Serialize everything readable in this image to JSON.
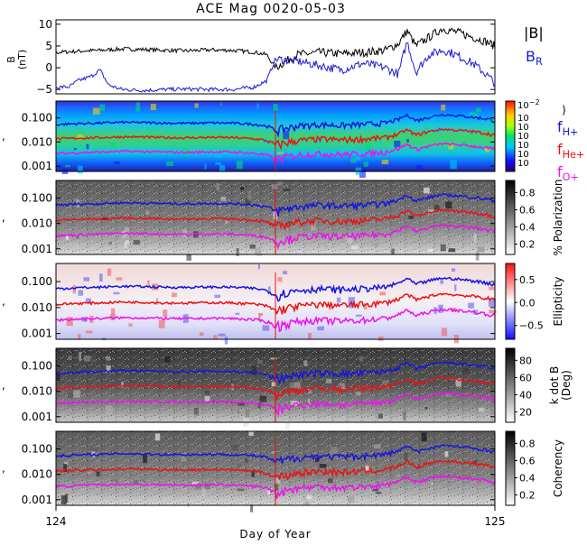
{
  "title": "ACE Mag 0020-05-03",
  "xlabel": "Day of Year",
  "x_ticks": [
    "124",
    "125"
  ],
  "colors": {
    "B_total": "#000000",
    "B_R": "#1a1ad8",
    "f_H": "#1515e0",
    "f_He": "#ee1111",
    "f_O": "#ee11ee"
  },
  "chart_data": [
    {
      "type": "line",
      "panel": "magnetic-field",
      "ylabel": "B (nT)",
      "ylabel_line1": "B",
      "ylabel_line2": "(nT)",
      "yticks": [
        "10",
        "5",
        "0",
        "−5"
      ],
      "ylim": [
        -6,
        11
      ],
      "xlim": [
        124,
        125
      ],
      "legend": [
        {
          "label": "|B|",
          "color": "#000000"
        },
        {
          "label": "B",
          "sub": "R",
          "color": "#1a1ad8"
        }
      ],
      "series": [
        {
          "name": "|B|",
          "x": [
            124.0,
            124.05,
            124.1,
            124.15,
            124.2,
            124.25,
            124.3,
            124.35,
            124.4,
            124.45,
            124.48,
            124.5,
            124.55,
            124.6,
            124.65,
            124.7,
            124.75,
            124.78,
            124.8,
            124.82,
            124.85,
            124.88,
            124.9,
            124.92,
            124.95,
            124.98,
            125.0
          ],
          "values": [
            3.5,
            3.8,
            4.0,
            4.3,
            4.2,
            4.0,
            3.9,
            4.1,
            4.0,
            3.6,
            3.0,
            0.0,
            3.0,
            3.5,
            3.2,
            3.5,
            4.0,
            5.5,
            8.5,
            5.0,
            7.0,
            9.0,
            8.5,
            8.0,
            7.0,
            6.0,
            5.0
          ]
        },
        {
          "name": "B_R",
          "x": [
            124.0,
            124.03,
            124.05,
            124.08,
            124.1,
            124.12,
            124.15,
            124.2,
            124.25,
            124.3,
            124.35,
            124.4,
            124.45,
            124.48,
            124.5,
            124.55,
            124.6,
            124.65,
            124.7,
            124.75,
            124.78,
            124.8,
            124.82,
            124.85,
            124.88,
            124.9,
            124.92,
            124.95,
            124.98,
            125.0
          ],
          "values": [
            -4.5,
            -4.4,
            -3.0,
            -2.0,
            -0.5,
            -4.0,
            -5.0,
            -5.2,
            -5.0,
            -4.9,
            -5.0,
            -5.0,
            -4.5,
            -3.0,
            2.0,
            1.5,
            0.5,
            -0.5,
            1.0,
            0.0,
            -1.5,
            6.0,
            -1.0,
            3.0,
            4.0,
            3.5,
            2.5,
            1.0,
            -1.5,
            -3.5
          ]
        }
      ]
    },
    {
      "type": "heatmap",
      "panel": "power-spectrum",
      "ylabel": "Frequency (Hz)",
      "yticks": [
        "0.100",
        "0.010",
        "0.001"
      ],
      "ylim_log": [
        0.0006,
        0.5
      ],
      "colorbar_label": "",
      "colorbar_top_label": "10",
      "colorbar_top_exp": "−2",
      "colorbar_paren": ")",
      "colorbar_tick_base": "10",
      "colorbar_levels": 7,
      "line_labels": [
        {
          "name": "f",
          "sub": "H+",
          "color": "#1515e0"
        },
        {
          "name": "f",
          "sub": "He+",
          "color": "#ee1111"
        },
        {
          "name": "f",
          "sub": "O+",
          "color": "#ee11ee"
        }
      ],
      "cmap": "rainbow"
    },
    {
      "type": "heatmap",
      "panel": "polarization",
      "ylabel": "Frequency (Hz)",
      "yticks": [
        "0.100",
        "0.010",
        "0.001"
      ],
      "colorbar_label": "% Polarization",
      "colorbar_ticks": [
        "0.8",
        "0.6",
        "0.4",
        "0.2"
      ],
      "cmap": "gray"
    },
    {
      "type": "heatmap",
      "panel": "ellipticity",
      "ylabel": "Frequency (Hz)",
      "yticks": [
        "0.100",
        "0.010",
        "0.001"
      ],
      "colorbar_label": "Ellipticity",
      "colorbar_ticks": [
        "0.5",
        "0.0",
        "−0.5"
      ],
      "cmap": "bwr"
    },
    {
      "type": "heatmap",
      "panel": "k-dot-b",
      "ylabel": "Frequency (Hz)",
      "yticks": [
        "0.100",
        "0.010",
        "0.001"
      ],
      "colorbar_label": "k dot B",
      "colorbar_label2": "(Deg)",
      "colorbar_ticks": [
        "80",
        "60",
        "40",
        "20"
      ],
      "cmap": "gray"
    },
    {
      "type": "heatmap",
      "panel": "coherency",
      "ylabel": "Frequency (Hz)",
      "yticks": [
        "0.100",
        "0.010",
        "0.001"
      ],
      "colorbar_label": "Coherency",
      "colorbar_ticks": [
        "0.8",
        "0.6",
        "0.4",
        "0.2"
      ],
      "cmap": "gray"
    }
  ],
  "gyrofrequency_lines": {
    "x": [
      124.0,
      124.05,
      124.1,
      124.15,
      124.2,
      124.25,
      124.3,
      124.35,
      124.4,
      124.45,
      124.48,
      124.5,
      124.55,
      124.6,
      124.65,
      124.7,
      124.75,
      124.78,
      124.8,
      124.82,
      124.85,
      124.88,
      124.9,
      124.92,
      124.95,
      124.98,
      125.0
    ],
    "f_H": [
      0.053,
      0.058,
      0.061,
      0.066,
      0.064,
      0.061,
      0.06,
      0.062,
      0.061,
      0.055,
      0.046,
      0.03,
      0.046,
      0.053,
      0.049,
      0.053,
      0.061,
      0.084,
      0.13,
      0.076,
      0.107,
      0.137,
      0.13,
      0.122,
      0.107,
      0.092,
      0.076
    ],
    "f_He": [
      0.0133,
      0.0145,
      0.0152,
      0.0164,
      0.016,
      0.0152,
      0.0149,
      0.0156,
      0.0152,
      0.0137,
      0.0114,
      0.0075,
      0.0114,
      0.0133,
      0.0122,
      0.0133,
      0.0152,
      0.021,
      0.032,
      0.019,
      0.027,
      0.034,
      0.032,
      0.03,
      0.027,
      0.023,
      0.019
    ],
    "f_O": [
      0.0033,
      0.0036,
      0.0038,
      0.0041,
      0.004,
      0.0038,
      0.0037,
      0.0039,
      0.0038,
      0.0034,
      0.0029,
      0.0019,
      0.0029,
      0.0033,
      0.003,
      0.0033,
      0.0038,
      0.0052,
      0.008,
      0.0048,
      0.0067,
      0.0085,
      0.008,
      0.0076,
      0.0067,
      0.0057,
      0.0048
    ]
  }
}
